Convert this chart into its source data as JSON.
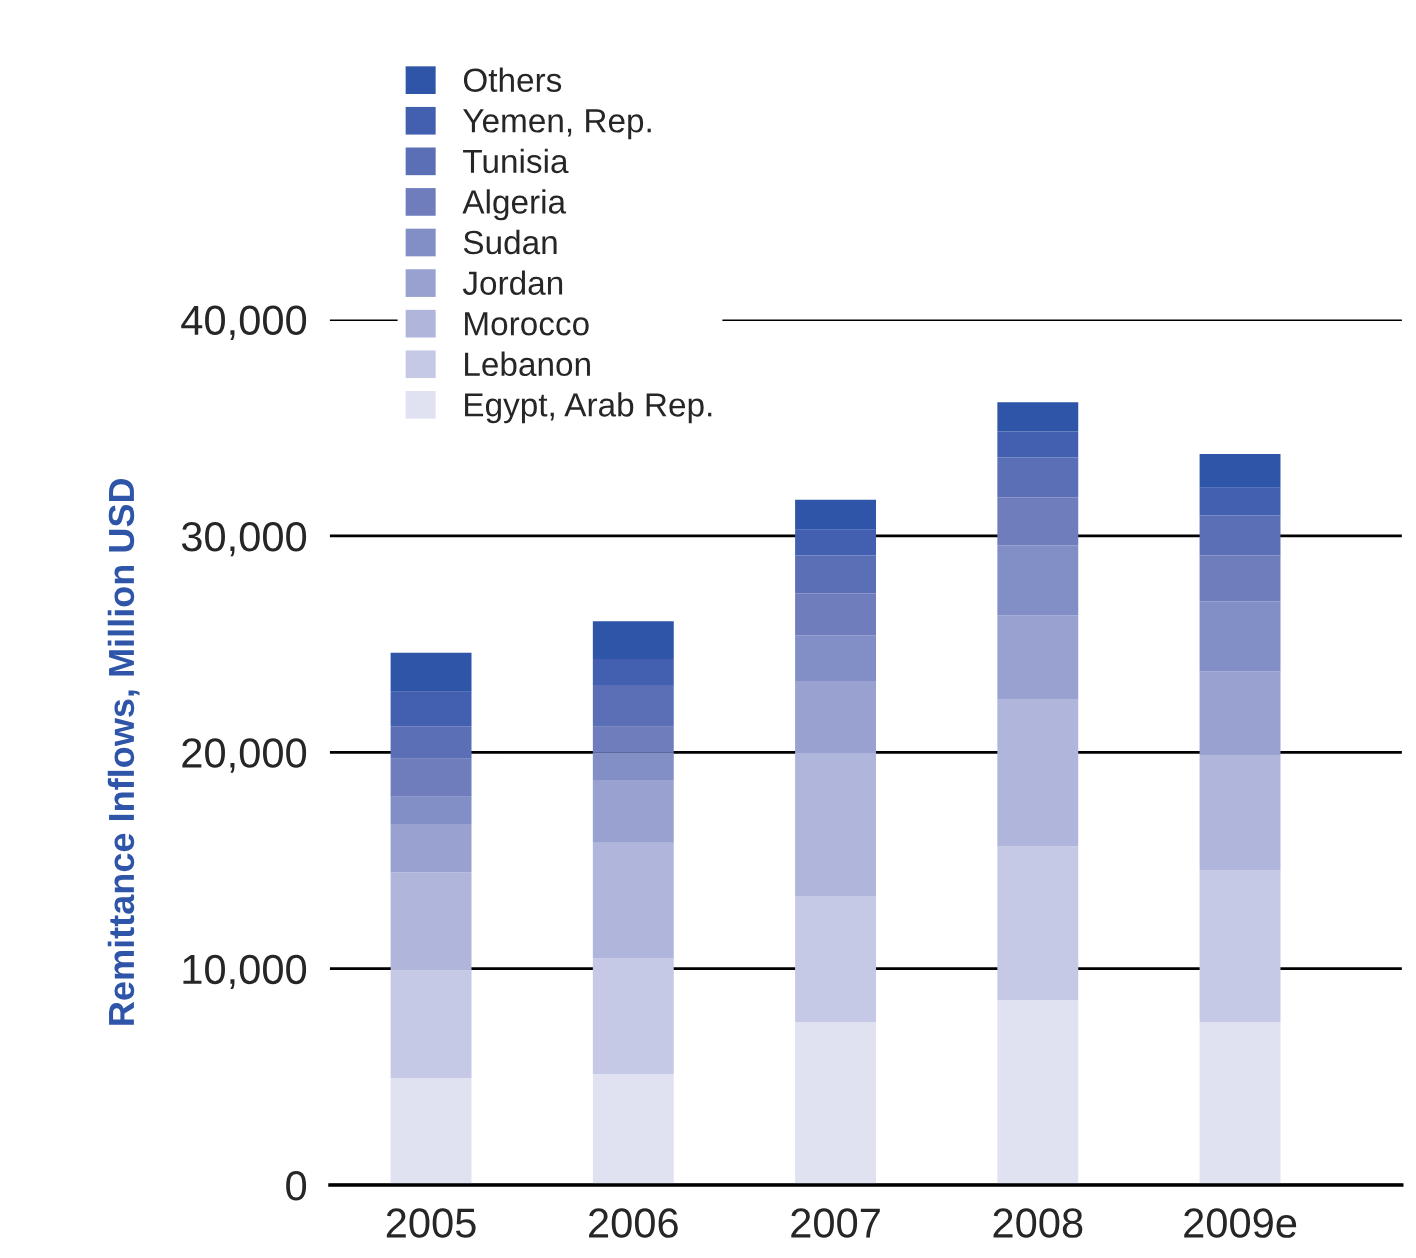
{
  "chart_data": {
    "type": "bar",
    "stacked": true,
    "ylabel": "Remittance Inflows, Million USD",
    "categories": [
      "2005",
      "2006",
      "2007",
      "2008",
      "2009e"
    ],
    "series": [
      {
        "name": "Egypt, Arab Rep.",
        "color": "#e0e2f1",
        "values": [
          4950,
          5130,
          7530,
          8540,
          7530
        ]
      },
      {
        "name": "Lebanon",
        "color": "#c5c9e6",
        "values": [
          4980,
          5350,
          5830,
          7100,
          7010
        ]
      },
      {
        "name": "Morocco",
        "color": "#afb5db",
        "values": [
          4510,
          5340,
          6610,
          6820,
          5340
        ]
      },
      {
        "name": "Jordan",
        "color": "#98a1cf",
        "values": [
          2210,
          2870,
          3320,
          3870,
          3870
        ]
      },
      {
        "name": "Sudan",
        "color": "#828ec6",
        "values": [
          1290,
          1290,
          2120,
          3230,
          3220
        ]
      },
      {
        "name": "Algeria",
        "color": "#6f7dbd",
        "values": [
          1760,
          1200,
          1930,
          2210,
          2120
        ]
      },
      {
        "name": "Tunisia",
        "color": "#5b6fb6",
        "values": [
          1500,
          1930,
          1750,
          1850,
          1850
        ]
      },
      {
        "name": "Yemen, Rep.",
        "color": "#4360b0",
        "values": [
          1600,
          1200,
          1200,
          1200,
          1290
        ]
      },
      {
        "name": "Others",
        "color": "#2e55a7",
        "values": [
          1800,
          1750,
          1380,
          1360,
          1560
        ]
      }
    ],
    "ylim": [
      0,
      40000
    ],
    "yticks": [
      0,
      {
        "value": 10000,
        "label": "10,000"
      },
      {
        "value": 20000,
        "label": "20,000"
      },
      {
        "value": 30000,
        "label": "30,000"
      },
      {
        "value": 40000,
        "label": "40,000"
      }
    ],
    "grid": "y",
    "legend": "top left"
  }
}
